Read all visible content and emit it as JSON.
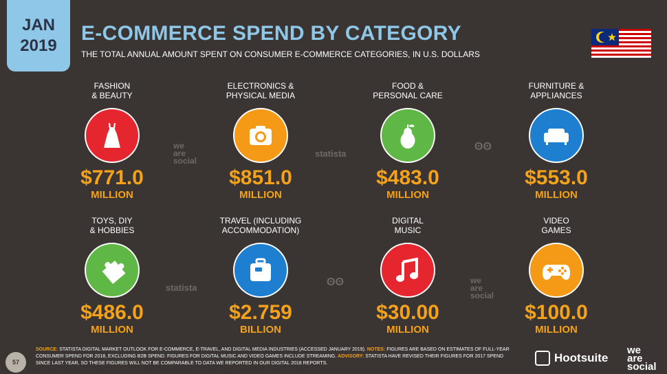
{
  "header": {
    "month": "JAN",
    "year": "2019",
    "title": "E-COMMERCE SPEND BY CATEGORY",
    "subtitle": "THE TOTAL ANNUAL AMOUNT SPENT ON CONSUMER E-COMMERCE CATEGORIES, IN U.S. DOLLARS"
  },
  "colors": {
    "background": "#3a3532",
    "title": "#8fc7e8",
    "value": "#f5a21b",
    "red": "#e5262f",
    "orange": "#f59a16",
    "green": "#5fb845",
    "blue": "#1e7fd0"
  },
  "categories": [
    {
      "label": "FASHION\n& BEAUTY",
      "value": "$771.0",
      "unit": "MILLION",
      "icon": "dress-icon",
      "color": "#e5262f"
    },
    {
      "label": "ELECTRONICS &\nPHYSICAL MEDIA",
      "value": "$851.0",
      "unit": "MILLION",
      "icon": "camera-icon",
      "color": "#f59a16"
    },
    {
      "label": "FOOD &\nPERSONAL CARE",
      "value": "$483.0",
      "unit": "MILLION",
      "icon": "pear-icon",
      "color": "#5fb845"
    },
    {
      "label": "FURNITURE &\nAPPLIANCES",
      "value": "$553.0",
      "unit": "MILLION",
      "icon": "sofa-icon",
      "color": "#1e7fd0"
    },
    {
      "label": "TOYS, DIY\n& HOBBIES",
      "value": "$486.0",
      "unit": "MILLION",
      "icon": "puzzle-icon",
      "color": "#5fb845"
    },
    {
      "label": "TRAVEL (INCLUDING\nACCOMMODATION)",
      "value": "$2.759",
      "unit": "BILLION",
      "icon": "suitcase-icon",
      "color": "#1e7fd0"
    },
    {
      "label": "DIGITAL\nMUSIC",
      "value": "$30.00",
      "unit": "MILLION",
      "icon": "music-note-icon",
      "color": "#e5262f"
    },
    {
      "label": "VIDEO\nGAMES",
      "value": "$100.0",
      "unit": "MILLION",
      "icon": "gamepad-icon",
      "color": "#f59a16"
    }
  ],
  "watermarks": {
    "social": "we\nare\nsocial",
    "statista": "statista"
  },
  "footer": {
    "page_number": "57",
    "source_label": "SOURCE:",
    "source_text": "STATISTA DIGITAL MARKET OUTLOOK FOR E-COMMERCE, E-TRAVEL, AND DIGITAL MEDIA INDUSTRIES (ACCESSED JANUARY 2019).",
    "notes_label": "NOTES:",
    "notes_text": "FIGURES ARE BASED ON ESTIMATES OF FULL-YEAR CONSUMER SPEND FOR 2018, EXCLUDING B2B SPEND. FIGURES FOR DIGITAL MUSIC AND VIDEO GAMES INCLUDE STREAMING.",
    "advisory_label": "ADVISORY:",
    "advisory_text": "STATISTA HAVE REVISED THEIR FIGURES FOR 2017 SPEND SINCE LAST YEAR, SO THESE FIGURES WILL NOT BE COMPARABLE TO DATA WE REPORTED IN OUR DIGITAL 2018 REPORTS.",
    "brand1": "Hootsuite",
    "brand2": "we\nare\nsocial"
  }
}
